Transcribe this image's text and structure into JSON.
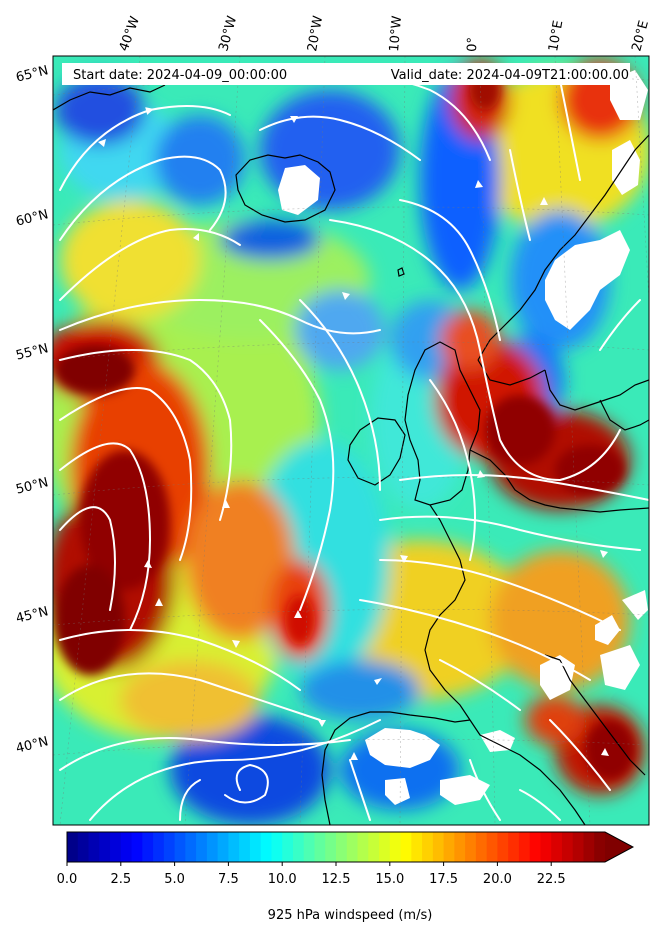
{
  "header": {
    "start_date": "Start date: 2024-04-09_00:00:00",
    "valid_date": "Valid_date: 2024-04-09T21:00:00.00"
  },
  "longitude_labels": [
    "40°W",
    "30°W",
    "20°W",
    "10°W",
    "0°",
    "10°E",
    "20°E"
  ],
  "latitude_labels": [
    "65°N",
    "60°N",
    "55°N",
    "50°N",
    "45°N",
    "40°N"
  ],
  "colorbar": {
    "label": "925 hPa windspeed (m/s)",
    "range": [
      0,
      25
    ],
    "extend": "max",
    "colormap": "jet",
    "ticks": [
      "0.0",
      "2.5",
      "5.0",
      "7.5",
      "10.0",
      "12.5",
      "15.0",
      "17.5",
      "20.0",
      "22.5"
    ]
  },
  "map": {
    "field": "925 hPa windspeed",
    "overlay": "wind streamlines",
    "streamline_color": "#ffffff",
    "coastline_color": "#000000",
    "masked_color": "#ffffff"
  }
}
